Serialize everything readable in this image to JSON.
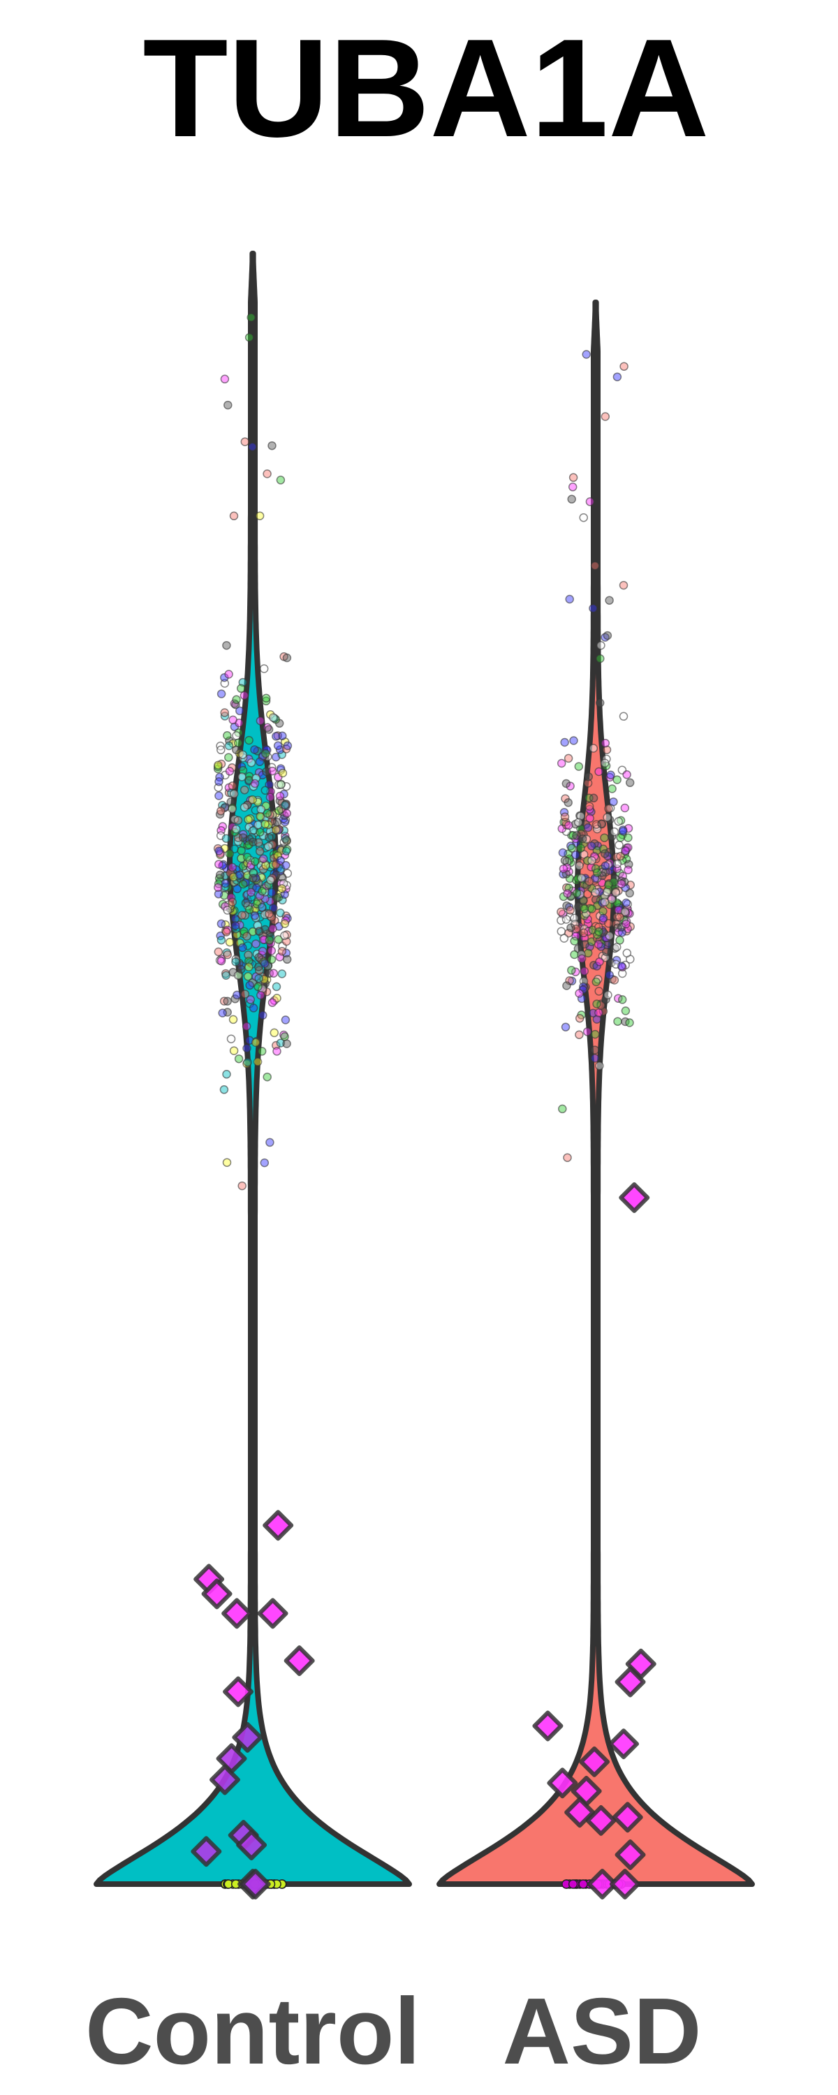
{
  "chart_data": {
    "type": "violin",
    "title": "TUBA1A",
    "xlabel": "",
    "ylabel": "",
    "ylim": [
      0,
      100
    ],
    "grid": false,
    "legend": "none",
    "categories": [
      "Control",
      "ASD"
    ],
    "colors": {
      "Control": "#00BFC4",
      "ASD": "#F8766D",
      "outline": "#333333",
      "diamond": "#FF33FF",
      "label": "#4D4D4D"
    },
    "violins": [
      {
        "name": "Control",
        "max": 100,
        "upper_mode": 62.5,
        "upper_range": [
          45,
          83.5
        ],
        "lower_mode": 0
      },
      {
        "name": "ASD",
        "max": 97,
        "upper_mode": 61,
        "upper_range": [
          43.6,
          73
        ],
        "lower_mode": 0
      }
    ],
    "highlight_points": [
      {
        "group": "Control",
        "values": [
          22.0,
          18.7,
          17.8,
          16.6,
          16.6,
          13.7,
          11.8,
          9.0,
          7.7,
          6.4,
          3.0,
          2.4,
          2.0,
          0,
          0
        ]
      },
      {
        "group": "ASD",
        "values": [
          42.1,
          13.5,
          12.4,
          9.7,
          8.6,
          7.5,
          6.2,
          5.7,
          4.4,
          3.9,
          4.1,
          1.8,
          0,
          0
        ]
      }
    ],
    "point_colors": [
      "#00BFC4",
      "#F8766D",
      "#33CC33",
      "#555555",
      "#FFFFFF",
      "#FFFF33",
      "#FF33FF",
      "#3333FF"
    ]
  }
}
